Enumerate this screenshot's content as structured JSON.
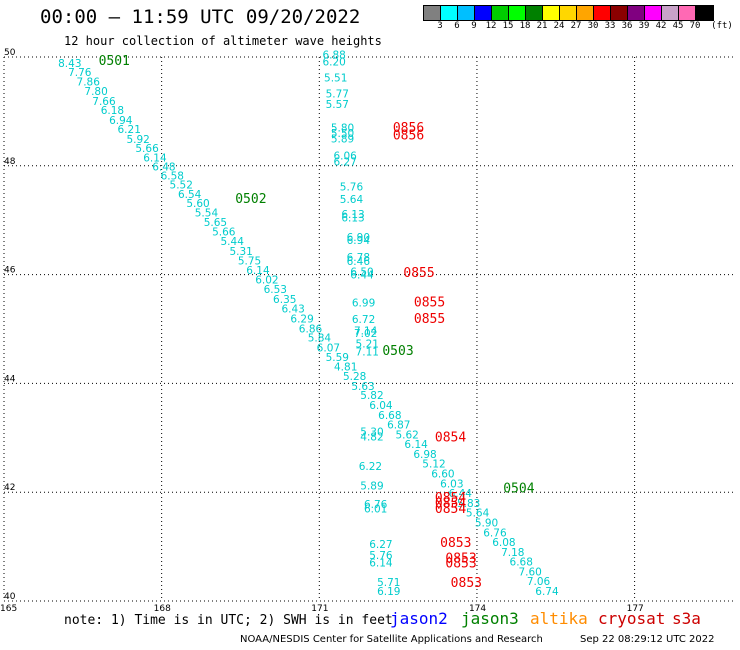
{
  "header": {
    "title": "00:00 – 11:59 UTC 09/20/2022",
    "subtitle": "12 hour collection of altimeter wave heights"
  },
  "colorbar": {
    "unit": "(ft)",
    "ticks": [
      "3",
      "6",
      "9",
      "12",
      "15",
      "18",
      "21",
      "24",
      "27",
      "30",
      "33",
      "36",
      "39",
      "42",
      "45",
      "70"
    ],
    "colors": [
      "#808080",
      "#00ffff",
      "#00bfff",
      "#0000ff",
      "#00cc00",
      "#00ff00",
      "#008000",
      "#ffff00",
      "#ffd700",
      "#ffa500",
      "#ff0000",
      "#8b0000",
      "#800080",
      "#ff00ff",
      "#c8a2c8",
      "#ff69b4",
      "#000000"
    ]
  },
  "map": {
    "lat_labels": [
      "50",
      "48",
      "46",
      "44",
      "42",
      "40"
    ],
    "lon_labels": [
      "165",
      "168",
      "171",
      "174",
      "177"
    ],
    "lat_range": [
      40,
      50
    ],
    "lon_range": [
      165,
      179
    ],
    "grid": "dotted"
  },
  "tracks": [
    {
      "pass": "0501",
      "label_color": "#008000",
      "label_lat": 49.85,
      "label_lon": 166.8,
      "points": [
        [
          "8.43",
          49.82,
          166.03
        ],
        [
          "7.76",
          49.65,
          166.22
        ],
        [
          "7.86",
          49.48,
          166.38
        ],
        [
          "7.80",
          49.3,
          166.53
        ],
        [
          "7.66",
          49.12,
          166.68
        ],
        [
          "6.18",
          48.95,
          166.84
        ],
        [
          "6.94",
          48.77,
          167.0
        ],
        [
          "6.21",
          48.6,
          167.16
        ],
        [
          "5.92",
          48.42,
          167.33
        ],
        [
          "5.66",
          48.25,
          167.5
        ],
        [
          "6.14",
          48.08,
          167.65
        ],
        [
          "6.48",
          47.91,
          167.82
        ],
        [
          "6.58",
          47.75,
          167.98
        ]
      ]
    },
    {
      "pass": "0502",
      "label_color": "#008000",
      "label_lat": 47.32,
      "label_lon": 169.4,
      "points": [
        [
          "5.52",
          47.58,
          168.15
        ],
        [
          "6.54",
          47.41,
          168.31
        ],
        [
          "5.60",
          47.24,
          168.47
        ],
        [
          "5.54",
          47.07,
          168.63
        ],
        [
          "5.65",
          46.89,
          168.8
        ],
        [
          "5.66",
          46.72,
          168.96
        ],
        [
          "5.44",
          46.54,
          169.12
        ],
        [
          "5.31",
          46.36,
          169.29
        ],
        [
          "5.75",
          46.19,
          169.45
        ],
        [
          "6.14",
          46.01,
          169.61
        ],
        [
          "6.02",
          45.84,
          169.78
        ],
        [
          "6.53",
          45.66,
          169.94
        ]
      ]
    },
    {
      "pass": "0503",
      "label_color": "#008000",
      "label_lat": 44.52,
      "label_lon": 172.2,
      "points": [
        [
          "6.35",
          45.48,
          170.12
        ],
        [
          "6.43",
          45.3,
          170.28
        ],
        [
          "6.29",
          45.12,
          170.45
        ],
        [
          "6.86",
          44.94,
          170.61
        ],
        [
          "5.84",
          44.77,
          170.78
        ],
        [
          "6.07",
          44.59,
          170.95
        ],
        [
          "5.59",
          44.41,
          171.12
        ],
        [
          "4.81",
          44.24,
          171.28
        ],
        [
          "5.28",
          44.06,
          171.45
        ],
        [
          "5.63",
          43.88,
          171.61
        ],
        [
          "5.82",
          43.71,
          171.78
        ],
        [
          "6.04",
          43.53,
          171.95
        ]
      ]
    },
    {
      "pass": "0504",
      "label_color": "#008000",
      "label_lat": 41.99,
      "label_lon": 174.5,
      "points": [
        [
          "6.68",
          43.35,
          172.12
        ],
        [
          "6.87",
          43.17,
          172.29
        ],
        [
          "5.62",
          42.99,
          172.45
        ],
        [
          "6.14",
          42.81,
          172.62
        ],
        [
          "6.98",
          42.63,
          172.79
        ],
        [
          "5.12",
          42.45,
          172.96
        ],
        [
          "6.60",
          42.27,
          173.13
        ],
        [
          "6.03",
          42.09,
          173.3
        ],
        [
          "6.44",
          41.91,
          173.46
        ],
        [
          "5.83",
          41.73,
          173.62
        ],
        [
          "5.64",
          41.55,
          173.79
        ],
        [
          "5.90",
          41.37,
          173.96
        ],
        [
          "6.76",
          41.19,
          174.12
        ],
        [
          "6.08",
          41.01,
          174.29
        ],
        [
          "7.18",
          40.83,
          174.46
        ],
        [
          "6.68",
          40.65,
          174.62
        ],
        [
          "7.60",
          40.47,
          174.79
        ],
        [
          "7.06",
          40.29,
          174.95
        ],
        [
          "6.74",
          40.11,
          175.11
        ]
      ]
    },
    {
      "pass": "0856",
      "label_color": "#00cccc",
      "label_lat": 49.5,
      "label_lon": 171.2,
      "points": [
        [
          "6.88",
          49.97,
          171.06
        ],
        [
          "6.20",
          49.84,
          171.06
        ],
        [
          "5.51",
          49.55,
          171.09
        ],
        [
          "5.77",
          49.26,
          171.12
        ],
        [
          "5.57",
          49.06,
          171.12
        ],
        [
          "5.80",
          48.63,
          171.22
        ],
        [
          "5.50",
          48.53,
          171.22
        ],
        [
          "5.89",
          48.43,
          171.22
        ],
        [
          "6.06",
          48.12,
          171.27
        ],
        [
          "6.27",
          48.01,
          171.27
        ],
        [
          "5.76",
          47.55,
          171.39
        ],
        [
          "5.64",
          47.32,
          171.39
        ],
        [
          "6.13",
          47.04,
          171.42
        ],
        [
          "6.13",
          46.98,
          171.42
        ],
        [
          "6.90",
          46.62,
          171.52
        ],
        [
          "6.94",
          46.56,
          171.52
        ],
        [
          "6.78",
          46.25,
          171.52
        ],
        [
          "6.46",
          46.18,
          171.52
        ],
        [
          "6.50",
          45.98,
          171.59
        ],
        [
          "6.44",
          45.93,
          171.59
        ],
        [
          "6.99",
          45.41,
          171.62
        ],
        [
          "6.72",
          45.11,
          171.62
        ],
        [
          "7.14",
          44.9,
          171.66
        ],
        [
          "7.02",
          44.85,
          171.66
        ],
        [
          "5.21",
          44.66,
          171.69
        ],
        [
          "7.11",
          44.51,
          171.69
        ]
      ]
    },
    {
      "pass": "0853",
      "label_color": "#00cccc",
      "label_lat": 42.0,
      "label_lon": 172.0,
      "points": [
        [
          "5.30",
          43.04,
          171.78
        ],
        [
          "4.82",
          42.95,
          171.78
        ],
        [
          "6.22",
          42.41,
          171.75
        ],
        [
          "5.89",
          42.05,
          171.78
        ],
        [
          "6.76",
          41.71,
          171.85
        ],
        [
          "6.01",
          41.63,
          171.85
        ],
        [
          "6.27",
          40.97,
          171.95
        ],
        [
          "5.76",
          40.77,
          171.95
        ],
        [
          "6.14",
          40.63,
          171.95
        ],
        [
          "5.71",
          40.28,
          172.1
        ],
        [
          "6.19",
          40.11,
          172.1
        ]
      ]
    }
  ],
  "cryosat_labels": [
    {
      "text": "0856",
      "lat": 48.62,
      "lon": 172.4
    },
    {
      "text": "0856",
      "lat": 48.48,
      "lon": 172.4
    },
    {
      "text": "0855",
      "lat": 45.96,
      "lon": 172.6
    },
    {
      "text": "0855",
      "lat": 45.41,
      "lon": 172.8
    },
    {
      "text": "0855",
      "lat": 45.11,
      "lon": 172.8
    },
    {
      "text": "0854",
      "lat": 42.93,
      "lon": 173.2
    },
    {
      "text": "0854",
      "lat": 41.82,
      "lon": 173.2
    },
    {
      "text": "0854",
      "lat": 41.72,
      "lon": 173.2
    },
    {
      "text": "0854",
      "lat": 41.62,
      "lon": 173.2
    },
    {
      "text": "0853",
      "lat": 40.99,
      "lon": 173.3
    },
    {
      "text": "0853",
      "lat": 40.71,
      "lon": 173.4
    },
    {
      "text": "0853",
      "lat": 40.62,
      "lon": 173.4
    },
    {
      "text": "0853",
      "lat": 40.26,
      "lon": 173.5
    }
  ],
  "footer": {
    "note": "note: 1) Time is in UTC; 2) SWH is in feet",
    "legend": [
      {
        "name": "jason2",
        "color": "#0000ff"
      },
      {
        "name": "jason3",
        "color": "#008000"
      },
      {
        "name": "altika",
        "color": "#ff8c00"
      },
      {
        "name": "cryosat",
        "color": "#cc0000"
      },
      {
        "name": "s3a",
        "color": "#cc0000"
      }
    ],
    "credit": "NOAA/NESDIS Center for Satellite Applications and Research",
    "updated": "Sep 22 08:29:12 UTC 2022"
  }
}
